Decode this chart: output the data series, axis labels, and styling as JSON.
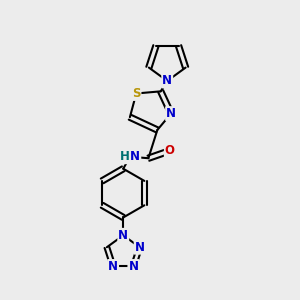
{
  "bg_color": "#ececec",
  "bond_color": "#000000",
  "bond_width": 1.5,
  "S_color": "#b8960a",
  "N_color": "#0000cc",
  "O_color": "#cc0000",
  "H_color": "#007070",
  "font_size": 8.5,
  "fig_size": [
    3.0,
    3.0
  ],
  "dpi": 100,
  "xlim": [
    0,
    10
  ],
  "ylim": [
    0,
    10
  ]
}
